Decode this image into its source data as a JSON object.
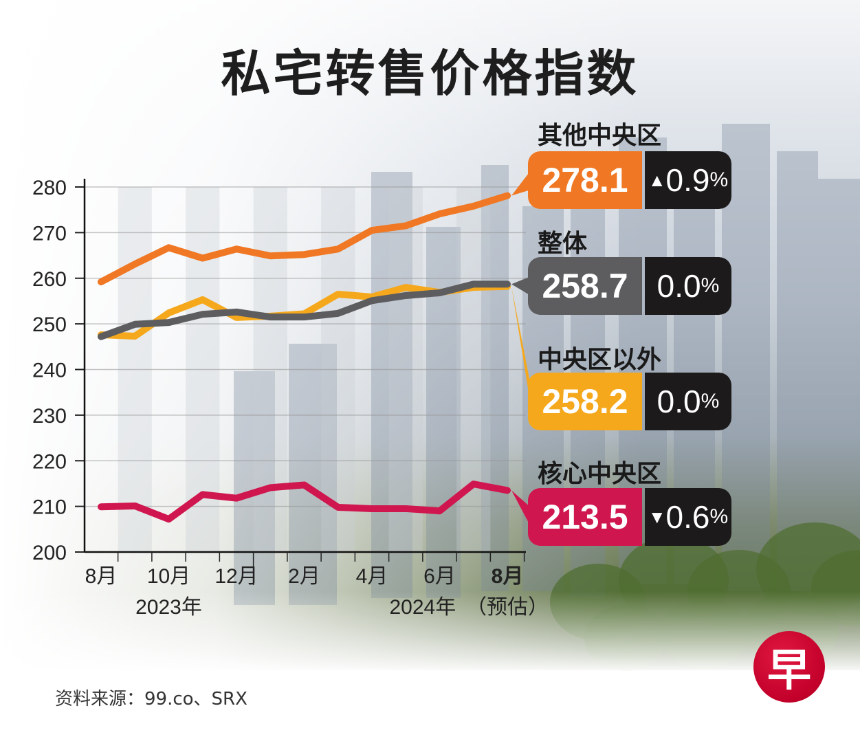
{
  "title": "私宅转售价格指数",
  "source": "资料来源：99.co、SRX",
  "logo_glyph": "早",
  "colors": {
    "ocr": "#f07824",
    "overall": "#5d5d5f",
    "outside": "#f5a81c",
    "ccr": "#d0164e",
    "change_box": "#1c1a1a"
  },
  "callouts": [
    {
      "id": "ocr",
      "label": "其他中央区",
      "value": "278.1",
      "arrow": "▲",
      "change": "0.9",
      "pct": "%"
    },
    {
      "id": "overall",
      "label": "整体",
      "value": "258.7",
      "arrow": "",
      "change": "0.0",
      "pct": "%"
    },
    {
      "id": "outside",
      "label": "中央区以外",
      "value": "258.2",
      "arrow": "",
      "change": "0.0",
      "pct": "%"
    },
    {
      "id": "ccr",
      "label": "核心中央区",
      "value": "213.5",
      "arrow": "▼",
      "change": "0.6",
      "pct": "%"
    }
  ],
  "chart_data": {
    "type": "line",
    "title": "私宅转售价格指数",
    "xlabel": "",
    "ylabel": "",
    "x": [
      "2023-08",
      "2023-09",
      "2023-10",
      "2023-11",
      "2023-12",
      "2024-01",
      "2024-02",
      "2024-03",
      "2024-04",
      "2024-05",
      "2024-06",
      "2024-07",
      "2024-08"
    ],
    "x_tick_labels": [
      {
        "index": 0,
        "label": "8月",
        "bold": false
      },
      {
        "index": 2,
        "label": "10月",
        "bold": false
      },
      {
        "index": 4,
        "label": "12月",
        "bold": false
      },
      {
        "index": 6,
        "label": "2月",
        "bold": false
      },
      {
        "index": 8,
        "label": "4月",
        "bold": false
      },
      {
        "index": 10,
        "label": "6月",
        "bold": false
      },
      {
        "index": 12,
        "label": "8月",
        "bold": true
      }
    ],
    "year_labels": [
      {
        "index": 2,
        "label": "2023年"
      },
      {
        "index": 9.5,
        "label": "2024年"
      },
      {
        "index": 12,
        "label": "（预估）"
      }
    ],
    "ylim": [
      200,
      280
    ],
    "yticks": [
      200,
      210,
      220,
      230,
      240,
      250,
      260,
      270,
      280
    ],
    "grid": true,
    "series": [
      {
        "id": "ocr",
        "name": "其他中央区",
        "values": [
          259.2,
          263.1,
          266.7,
          264.4,
          266.4,
          264.9,
          265.2,
          266.4,
          270.5,
          271.5,
          274.1,
          275.8,
          278.1
        ]
      },
      {
        "id": "outside",
        "name": "中央区以外",
        "values": [
          247.6,
          247.3,
          252.4,
          255.3,
          251.4,
          251.7,
          252.2,
          256.5,
          255.9,
          258.0,
          256.9,
          258.0,
          258.2
        ]
      },
      {
        "id": "overall",
        "name": "整体",
        "values": [
          247.2,
          249.9,
          250.3,
          252.1,
          252.6,
          251.5,
          251.5,
          252.3,
          255.1,
          256.2,
          256.8,
          258.7,
          258.7
        ]
      },
      {
        "id": "ccr",
        "name": "核心中央区",
        "values": [
          209.9,
          210.1,
          207.2,
          212.6,
          211.8,
          214.1,
          214.7,
          209.8,
          209.5,
          209.5,
          209.0,
          214.9,
          213.5
        ]
      }
    ]
  }
}
